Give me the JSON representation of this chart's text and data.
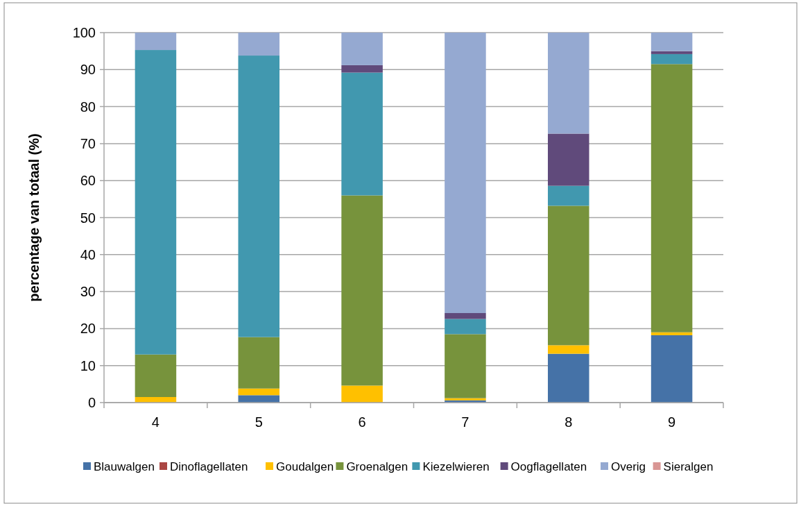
{
  "chart_data": {
    "type": "bar",
    "stacked": true,
    "ylabel": "percentage van totaal (%)",
    "categories": [
      "4",
      "5",
      "6",
      "7",
      "8",
      "9"
    ],
    "series": [
      {
        "name": "Blauwalgen",
        "color": "#4572a7",
        "values": [
          0,
          2,
          0,
          0.6,
          13.2,
          18.2
        ]
      },
      {
        "name": "Dinoflagellaten",
        "color": "#aa4643",
        "values": [
          0,
          0,
          0,
          0,
          0,
          0
        ]
      },
      {
        "name": "Goudalgen",
        "color": "#ffc000",
        "values": [
          1.5,
          1.8,
          4.6,
          0.6,
          2.3,
          0.8
        ]
      },
      {
        "name": "Groenalgen",
        "color": "#77933c",
        "values": [
          11.5,
          13.9,
          51.4,
          17.3,
          37.7,
          72.5
        ]
      },
      {
        "name": "Kiezelwieren",
        "color": "#4198af",
        "values": [
          82.3,
          76.1,
          33.2,
          4.1,
          5.4,
          2.7
        ]
      },
      {
        "name": "Oogflagellaten",
        "color": "#604a7b",
        "values": [
          0,
          0,
          2,
          1.6,
          14.1,
          0.8
        ]
      },
      {
        "name": "Overig",
        "color": "#95a9d1",
        "values": [
          4.7,
          6.2,
          8.8,
          75.8,
          27.3,
          5
        ]
      },
      {
        "name": "Sieralgen",
        "color": "#d99694",
        "values": [
          0,
          0,
          0,
          0,
          0,
          0
        ]
      }
    ],
    "ylim": [
      0,
      100
    ],
    "yticks": [
      0,
      10,
      20,
      30,
      40,
      50,
      60,
      70,
      80,
      90,
      100
    ],
    "grid": "y",
    "legend": "bottom"
  }
}
